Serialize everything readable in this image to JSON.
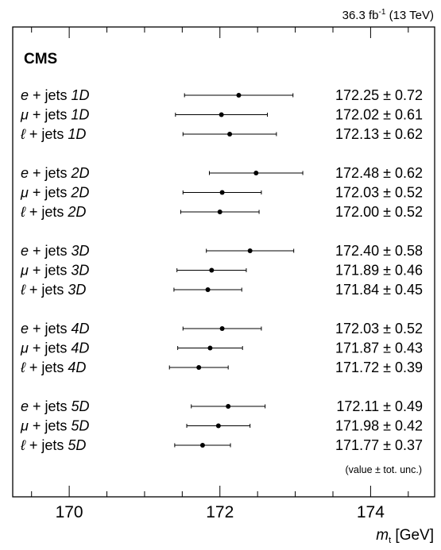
{
  "chart_data": {
    "type": "scatter",
    "subtitle_main": "36.3 fb",
    "subtitle_sup": "-1",
    "subtitle_tail": " (13 TeV)",
    "experiment": "CMS",
    "xlabel_var": "m",
    "xlabel_sub": "t",
    "xlabel_unit": " [GeV]",
    "xlim": [
      169.25,
      174.85
    ],
    "xticks": [
      "170",
      "172",
      "174"
    ],
    "footnote": "(value ± tot. unc.)",
    "groups": [
      {
        "dim": "1D",
        "rows": [
          {
            "prefix": "e",
            "suffix": " + jets ",
            "value": 172.25,
            "error": 0.72,
            "text": "172.25 ± 0.72"
          },
          {
            "prefix": "μ",
            "suffix": " + jets ",
            "value": 172.02,
            "error": 0.61,
            "text": "172.02 ± 0.61"
          },
          {
            "prefix": "ℓ",
            "suffix": " + jets ",
            "value": 172.13,
            "error": 0.62,
            "text": "172.13 ± 0.62"
          }
        ]
      },
      {
        "dim": "2D",
        "rows": [
          {
            "prefix": "e",
            "suffix": " + jets ",
            "value": 172.48,
            "error": 0.62,
            "text": "172.48 ± 0.62"
          },
          {
            "prefix": "μ",
            "suffix": " + jets ",
            "value": 172.03,
            "error": 0.52,
            "text": "172.03 ± 0.52"
          },
          {
            "prefix": "ℓ",
            "suffix": " + jets ",
            "value": 172.0,
            "error": 0.52,
            "text": "172.00 ± 0.52"
          }
        ]
      },
      {
        "dim": "3D",
        "rows": [
          {
            "prefix": "e",
            "suffix": " + jets ",
            "value": 172.4,
            "error": 0.58,
            "text": "172.40 ± 0.58"
          },
          {
            "prefix": "μ",
            "suffix": " + jets ",
            "value": 171.89,
            "error": 0.46,
            "text": "171.89 ± 0.46"
          },
          {
            "prefix": "ℓ",
            "suffix": " + jets ",
            "value": 171.84,
            "error": 0.45,
            "text": "171.84 ± 0.45"
          }
        ]
      },
      {
        "dim": "4D",
        "rows": [
          {
            "prefix": "e",
            "suffix": " + jets ",
            "value": 172.03,
            "error": 0.52,
            "text": "172.03 ± 0.52"
          },
          {
            "prefix": "μ",
            "suffix": " + jets ",
            "value": 171.87,
            "error": 0.43,
            "text": "171.87 ± 0.43"
          },
          {
            "prefix": "ℓ",
            "suffix": " + jets ",
            "value": 171.72,
            "error": 0.39,
            "text": "171.72 ± 0.39"
          }
        ]
      },
      {
        "dim": "5D",
        "rows": [
          {
            "prefix": "e",
            "suffix": " + jets ",
            "value": 172.11,
            "error": 0.49,
            "text": "172.11 ± 0.49"
          },
          {
            "prefix": "μ",
            "suffix": " + jets ",
            "value": 171.98,
            "error": 0.42,
            "text": "171.98 ± 0.42"
          },
          {
            "prefix": "ℓ",
            "suffix": " + jets ",
            "value": 171.77,
            "error": 0.37,
            "text": "171.77 ± 0.37"
          }
        ]
      }
    ]
  }
}
